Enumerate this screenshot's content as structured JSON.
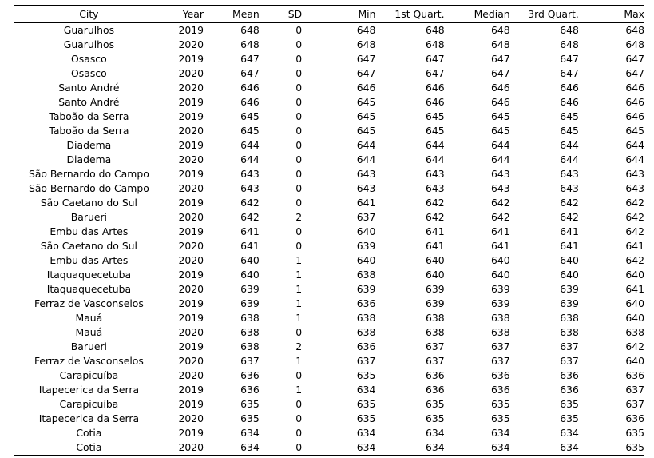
{
  "table": {
    "headers": [
      "City",
      "Year",
      "Mean",
      "SD",
      "Min",
      "1st Quart.",
      "Median",
      "3rd Quart.",
      "Max"
    ],
    "rows": [
      [
        "Guarulhos",
        "2019",
        "648",
        "0",
        "648",
        "648",
        "648",
        "648",
        "648"
      ],
      [
        "Guarulhos",
        "2020",
        "648",
        "0",
        "648",
        "648",
        "648",
        "648",
        "648"
      ],
      [
        "Osasco",
        "2019",
        "647",
        "0",
        "647",
        "647",
        "647",
        "647",
        "647"
      ],
      [
        "Osasco",
        "2020",
        "647",
        "0",
        "647",
        "647",
        "647",
        "647",
        "647"
      ],
      [
        "Santo André",
        "2020",
        "646",
        "0",
        "646",
        "646",
        "646",
        "646",
        "646"
      ],
      [
        "Santo André",
        "2019",
        "646",
        "0",
        "645",
        "646",
        "646",
        "646",
        "646"
      ],
      [
        "Taboão da Serra",
        "2019",
        "645",
        "0",
        "645",
        "645",
        "645",
        "645",
        "646"
      ],
      [
        "Taboão da Serra",
        "2020",
        "645",
        "0",
        "645",
        "645",
        "645",
        "645",
        "645"
      ],
      [
        "Diadema",
        "2019",
        "644",
        "0",
        "644",
        "644",
        "644",
        "644",
        "644"
      ],
      [
        "Diadema",
        "2020",
        "644",
        "0",
        "644",
        "644",
        "644",
        "644",
        "644"
      ],
      [
        "São Bernardo do Campo",
        "2019",
        "643",
        "0",
        "643",
        "643",
        "643",
        "643",
        "643"
      ],
      [
        "São Bernardo do Campo",
        "2020",
        "643",
        "0",
        "643",
        "643",
        "643",
        "643",
        "643"
      ],
      [
        "São Caetano do Sul",
        "2019",
        "642",
        "0",
        "641",
        "642",
        "642",
        "642",
        "642"
      ],
      [
        "Barueri",
        "2020",
        "642",
        "2",
        "637",
        "642",
        "642",
        "642",
        "642"
      ],
      [
        "Embu das Artes",
        "2019",
        "641",
        "0",
        "640",
        "641",
        "641",
        "641",
        "642"
      ],
      [
        "São Caetano do Sul",
        "2020",
        "641",
        "0",
        "639",
        "641",
        "641",
        "641",
        "641"
      ],
      [
        "Embu das Artes",
        "2020",
        "640",
        "1",
        "640",
        "640",
        "640",
        "640",
        "642"
      ],
      [
        "Itaquaquecetuba",
        "2019",
        "640",
        "1",
        "638",
        "640",
        "640",
        "640",
        "640"
      ],
      [
        "Itaquaquecetuba",
        "2020",
        "639",
        "1",
        "639",
        "639",
        "639",
        "639",
        "641"
      ],
      [
        "Ferraz de Vasconselos",
        "2019",
        "639",
        "1",
        "636",
        "639",
        "639",
        "639",
        "640"
      ],
      [
        "Mauá",
        "2019",
        "638",
        "1",
        "638",
        "638",
        "638",
        "638",
        "640"
      ],
      [
        "Mauá",
        "2020",
        "638",
        "0",
        "638",
        "638",
        "638",
        "638",
        "638"
      ],
      [
        "Barueri",
        "2019",
        "638",
        "2",
        "636",
        "637",
        "637",
        "637",
        "642"
      ],
      [
        "Ferraz de Vasconselos",
        "2020",
        "637",
        "1",
        "637",
        "637",
        "637",
        "637",
        "640"
      ],
      [
        "Carapicuíba",
        "2020",
        "636",
        "0",
        "635",
        "636",
        "636",
        "636",
        "636"
      ],
      [
        "Itapecerica da Serra",
        "2019",
        "636",
        "1",
        "634",
        "636",
        "636",
        "636",
        "637"
      ],
      [
        "Carapicuíba",
        "2019",
        "635",
        "0",
        "635",
        "635",
        "635",
        "635",
        "637"
      ],
      [
        "Itapecerica da Serra",
        "2020",
        "635",
        "0",
        "635",
        "635",
        "635",
        "635",
        "636"
      ],
      [
        "Cotia",
        "2019",
        "634",
        "0",
        "634",
        "634",
        "634",
        "634",
        "635"
      ],
      [
        "Cotia",
        "2020",
        "634",
        "0",
        "634",
        "634",
        "634",
        "634",
        "635"
      ]
    ]
  }
}
